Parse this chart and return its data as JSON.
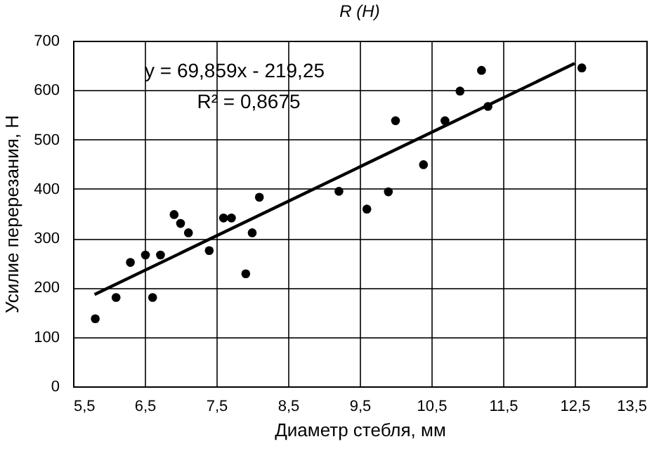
{
  "chart_data": {
    "type": "scatter",
    "title": "R (Н)",
    "xlabel": "Диаметр стебля, мм",
    "ylabel": "Усилие перерезания, Н",
    "annotations": [
      "y = 69,859x - 219,25",
      "R² = 0,8675"
    ],
    "x": [
      5.81,
      6.1,
      6.3,
      6.51,
      6.61,
      6.72,
      6.91,
      7.0,
      7.11,
      7.4,
      7.6,
      7.71,
      7.91,
      8.0,
      8.1,
      9.21,
      9.6,
      9.9,
      10.0,
      10.39,
      10.69,
      10.9,
      11.2,
      11.29,
      12.6
    ],
    "series": [
      {
        "color": "#000000",
        "values": [
          137,
          180,
          251,
          266,
          180,
          266,
          348,
          330,
          311,
          275,
          341,
          341,
          228,
          311,
          383,
          395,
          359,
          394,
          538,
          449,
          538,
          598,
          640,
          567,
          645
        ]
      },
      {
        "type": "line",
        "color": "#000000",
        "marker": "none",
        "x": [
          5.8,
          12.5
        ],
        "values": [
          186,
          654
        ]
      }
    ],
    "xlim": [
      5.5,
      13.5
    ],
    "xticks": [
      {
        "value": 5.5,
        "label": "5,5"
      },
      {
        "value": 6.5,
        "label": "6,5"
      },
      {
        "value": 7.5,
        "label": "7,5"
      },
      {
        "value": 8.5,
        "label": "8,5"
      },
      {
        "value": 9.5,
        "label": "9,5"
      },
      {
        "value": 10.5,
        "label": "10,5"
      },
      {
        "value": 11.5,
        "label": "11,5"
      },
      {
        "value": 12.5,
        "label": "12,5"
      },
      {
        "value": 13.5,
        "label": "13,5"
      }
    ],
    "ylim": [
      0,
      700
    ],
    "yticks": [
      0,
      100,
      200,
      300,
      400,
      500,
      600,
      700
    ],
    "grid": true,
    "marker": "circle"
  }
}
